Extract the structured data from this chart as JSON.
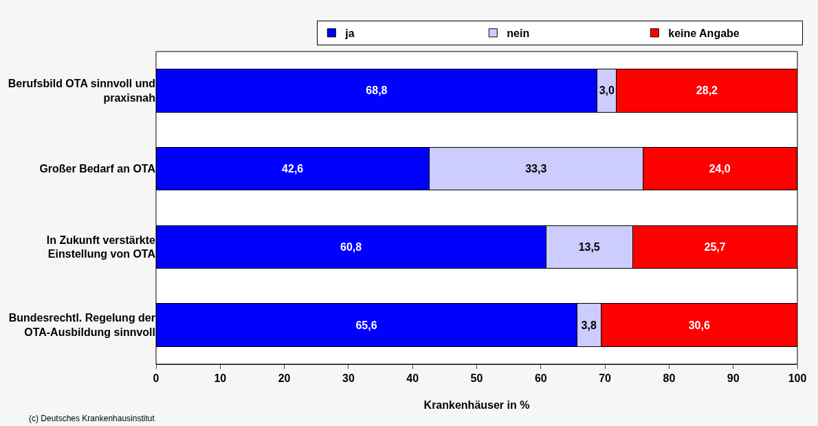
{
  "chart_data": {
    "type": "bar",
    "orientation": "horizontal",
    "stacked": true,
    "xlabel": "Krankenhäuser in %",
    "categories": [
      "Berufsbild OTA sinnvoll und praxisnah",
      "Großer Bedarf an OTA",
      "In Zukunft verstärkte Einstellung von OTA",
      "Bundesrechtl. Regelung der OTA-Ausbildung sinnvoll"
    ],
    "series": [
      {
        "name": "ja",
        "color": "#0000ff",
        "values": [
          68.8,
          42.6,
          60.8,
          65.6
        ],
        "value_labels": [
          "68,8",
          "42,6",
          "60,8",
          "65,6"
        ]
      },
      {
        "name": "nein",
        "color": "#ccccff",
        "values": [
          3.0,
          33.3,
          13.5,
          3.8
        ],
        "value_labels": [
          "3,0",
          "33,3",
          "13,5",
          "3,8"
        ]
      },
      {
        "name": "keine Angabe",
        "color": "#ff0000",
        "values": [
          28.2,
          24.0,
          25.7,
          30.6
        ],
        "value_labels": [
          "28,2",
          "24,0",
          "25,7",
          "30,6"
        ]
      }
    ],
    "xlim": [
      0,
      100
    ],
    "xticks": [
      0,
      10,
      20,
      30,
      40,
      50,
      60,
      70,
      80,
      90,
      100
    ],
    "legend": "top",
    "annotations": [
      "(c) Deutsches Krankenhausinstitut"
    ]
  }
}
